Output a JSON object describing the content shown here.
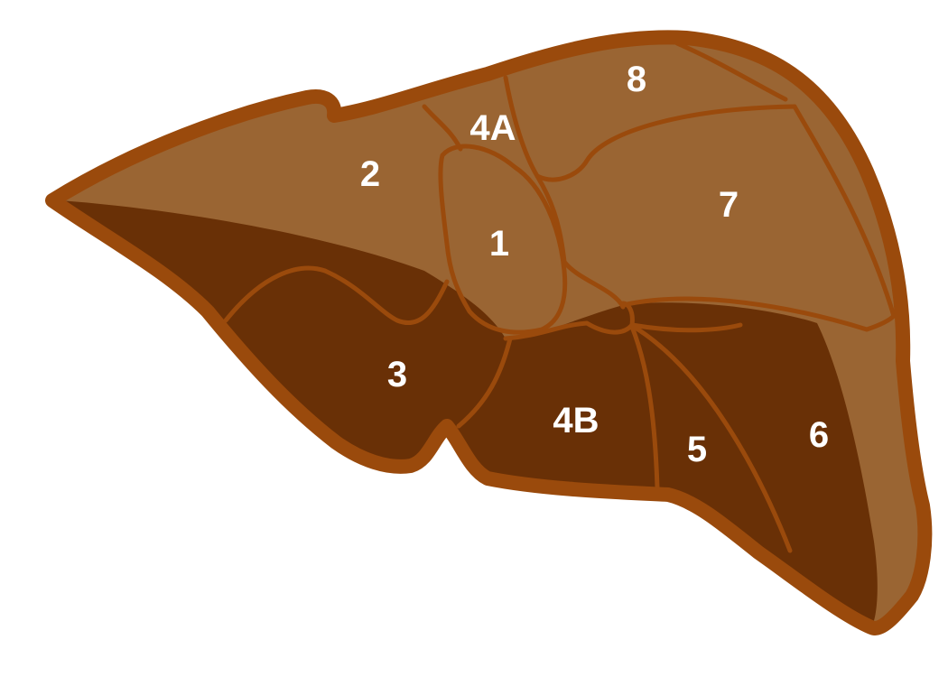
{
  "colors": {
    "background": "#ffffff",
    "outline": "#9a4a0c",
    "light_lobe": "#9a6533",
    "dark_lobe": "#693006",
    "label_text": "#ffffff"
  },
  "segments": [
    {
      "key": "s8",
      "label": "8"
    },
    {
      "key": "s4a",
      "label": "4A"
    },
    {
      "key": "s2",
      "label": "2"
    },
    {
      "key": "s7",
      "label": "7"
    },
    {
      "key": "s1",
      "label": "1"
    },
    {
      "key": "s3",
      "label": "3"
    },
    {
      "key": "s4b",
      "label": "4B"
    },
    {
      "key": "s6",
      "label": "6"
    },
    {
      "key": "s5",
      "label": "5"
    }
  ]
}
